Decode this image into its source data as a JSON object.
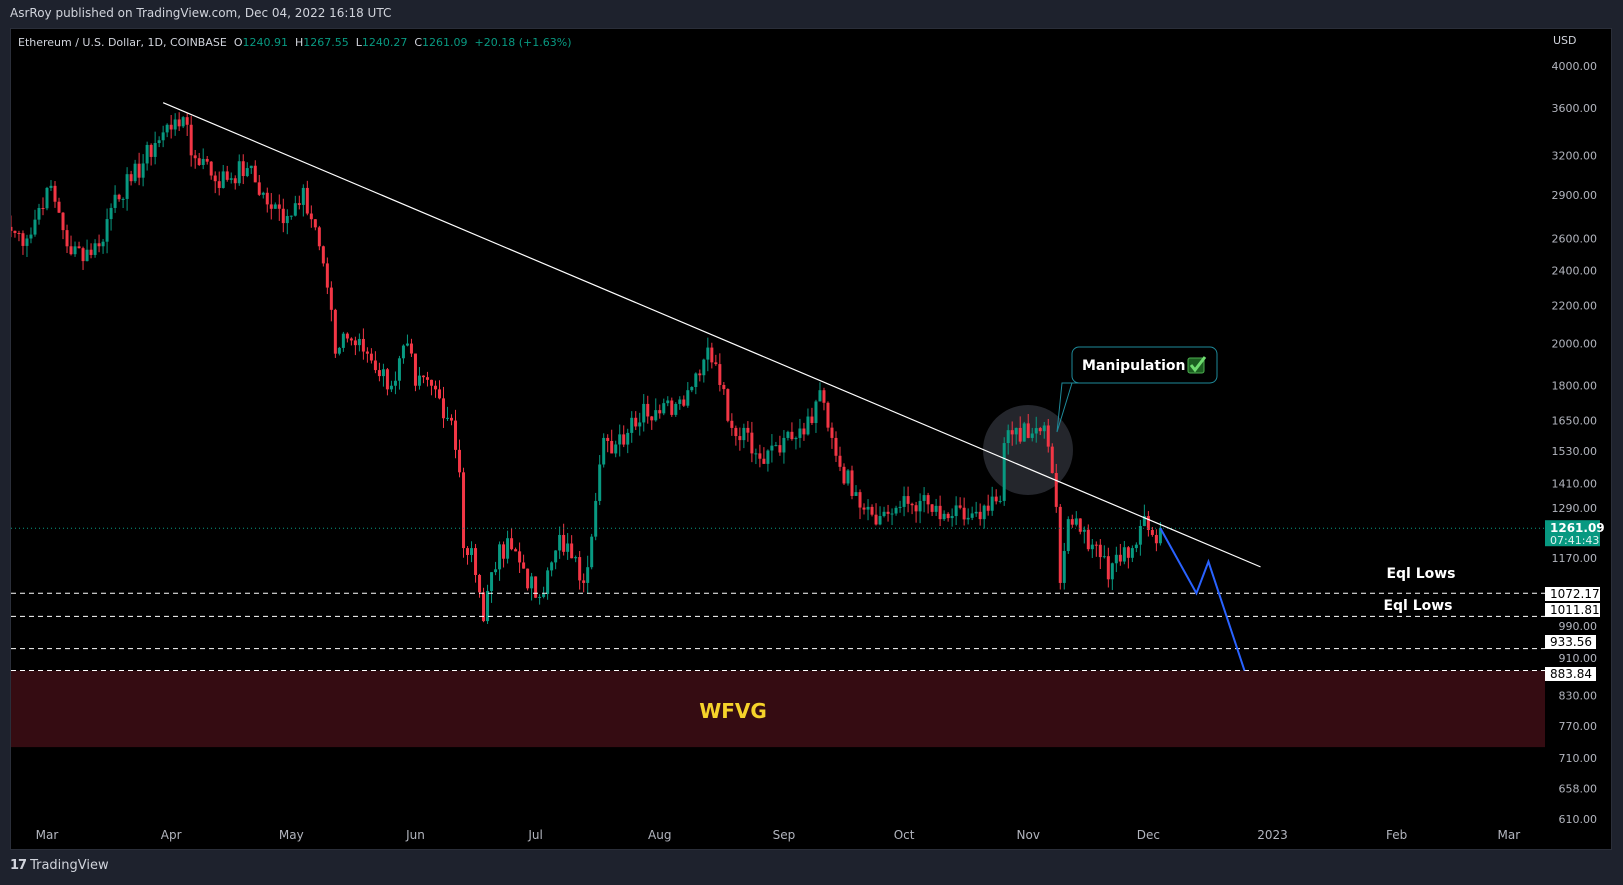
{
  "header": {
    "published": "AsrRoy published on TradingView.com, Dec 04, 2022 16:18 UTC"
  },
  "legend": {
    "symbol": "Ethereum / U.S. Dollar, 1D, COINBASE",
    "o_label": "O",
    "o": "1240.91",
    "h_label": "H",
    "h": "1267.55",
    "l_label": "L",
    "l": "1240.27",
    "c_label": "C",
    "c": "1261.09",
    "change": "+20.18 (+1.63%)"
  },
  "footer": {
    "brand": "TradingView",
    "logo": "TV"
  },
  "colors": {
    "up": "#089981",
    "down": "#f23645",
    "bg": "#000000",
    "trendline": "#ffffff",
    "projection": "#2962ff",
    "zone": "#350c12",
    "wfvg_text": "#f5d32a",
    "label_border": "#1e8a9a"
  },
  "chart_data": {
    "type": "candlestick",
    "currency_label": "USD",
    "scale": "log",
    "ylim": [
      600,
      4300
    ],
    "y_ticks": [
      "4000.00",
      "3600.00",
      "3200.00",
      "2900.00",
      "2600.00",
      "2400.00",
      "2200.00",
      "2000.00",
      "1800.00",
      "1650.00",
      "1530.00",
      "1410.00",
      "1290.00",
      "1170.00",
      "990.00",
      "910.00",
      "830.00",
      "770.00",
      "710.00",
      "658.00",
      "610.00"
    ],
    "x_ticks": [
      {
        "label": "Mar",
        "date": "2022-03-01"
      },
      {
        "label": "Apr",
        "date": "2022-04-01"
      },
      {
        "label": "May",
        "date": "2022-05-01"
      },
      {
        "label": "Jun",
        "date": "2022-06-01"
      },
      {
        "label": "Jul",
        "date": "2022-07-01"
      },
      {
        "label": "Aug",
        "date": "2022-08-01"
      },
      {
        "label": "Sep",
        "date": "2022-09-01"
      },
      {
        "label": "Oct",
        "date": "2022-10-01"
      },
      {
        "label": "Nov",
        "date": "2022-11-01"
      },
      {
        "label": "Dec",
        "date": "2022-12-01"
      },
      {
        "label": "2023",
        "date": "2023-01-01"
      },
      {
        "label": "Feb",
        "date": "2023-02-01"
      },
      {
        "label": "Mar",
        "date": "2023-03-01"
      }
    ],
    "close_keypoints": [
      [
        "2022-02-20",
        2650
      ],
      [
        "2022-02-24",
        2600
      ],
      [
        "2022-03-01",
        2950
      ],
      [
        "2022-03-03",
        2850
      ],
      [
        "2022-03-07",
        2500
      ],
      [
        "2022-03-14",
        2550
      ],
      [
        "2022-03-18",
        2900
      ],
      [
        "2022-03-22",
        3000
      ],
      [
        "2022-03-28",
        3300
      ],
      [
        "2022-04-02",
        3500
      ],
      [
        "2022-04-04",
        3520
      ],
      [
        "2022-04-06",
        3200
      ],
      [
        "2022-04-10",
        3150
      ],
      [
        "2022-04-12",
        3000
      ],
      [
        "2022-04-20",
        3100
      ],
      [
        "2022-04-26",
        2800
      ],
      [
        "2022-04-30",
        2750
      ],
      [
        "2022-05-04",
        2950
      ],
      [
        "2022-05-08",
        2550
      ],
      [
        "2022-05-10",
        2300
      ],
      [
        "2022-05-12",
        1950
      ],
      [
        "2022-05-14",
        2050
      ],
      [
        "2022-05-20",
        1950
      ],
      [
        "2022-05-26",
        1800
      ],
      [
        "2022-05-30",
        2000
      ],
      [
        "2022-06-01",
        1800
      ],
      [
        "2022-06-05",
        1800
      ],
      [
        "2022-06-10",
        1650
      ],
      [
        "2022-06-12",
        1450
      ],
      [
        "2022-06-13",
        1200
      ],
      [
        "2022-06-15",
        1200
      ],
      [
        "2022-06-18",
        1000
      ],
      [
        "2022-06-20",
        1130
      ],
      [
        "2022-06-24",
        1230
      ],
      [
        "2022-06-28",
        1140
      ],
      [
        "2022-07-01",
        1060
      ],
      [
        "2022-07-03",
        1070
      ],
      [
        "2022-07-07",
        1240
      ],
      [
        "2022-07-10",
        1170
      ],
      [
        "2022-07-13",
        1100
      ],
      [
        "2022-07-16",
        1350
      ],
      [
        "2022-07-18",
        1580
      ],
      [
        "2022-07-20",
        1520
      ],
      [
        "2022-07-24",
        1600
      ],
      [
        "2022-07-28",
        1720
      ],
      [
        "2022-08-01",
        1680
      ],
      [
        "2022-08-05",
        1720
      ],
      [
        "2022-08-08",
        1780
      ],
      [
        "2022-08-13",
        1980
      ],
      [
        "2022-08-15",
        1900
      ],
      [
        "2022-08-19",
        1620
      ],
      [
        "2022-08-22",
        1620
      ],
      [
        "2022-08-26",
        1500
      ],
      [
        "2022-08-29",
        1550
      ],
      [
        "2022-09-01",
        1580
      ],
      [
        "2022-09-04",
        1580
      ],
      [
        "2022-09-08",
        1640
      ],
      [
        "2022-09-10",
        1780
      ],
      [
        "2022-09-13",
        1580
      ],
      [
        "2022-09-15",
        1470
      ],
      [
        "2022-09-19",
        1380
      ],
      [
        "2022-09-22",
        1330
      ],
      [
        "2022-09-25",
        1300
      ],
      [
        "2022-09-30",
        1330
      ],
      [
        "2022-10-05",
        1350
      ],
      [
        "2022-10-10",
        1290
      ],
      [
        "2022-10-13",
        1300
      ],
      [
        "2022-10-20",
        1290
      ],
      [
        "2022-10-25",
        1350
      ],
      [
        "2022-10-26",
        1560
      ],
      [
        "2022-10-29",
        1620
      ],
      [
        "2022-11-01",
        1580
      ],
      [
        "2022-11-05",
        1630
      ],
      [
        "2022-11-08",
        1330
      ],
      [
        "2022-11-09",
        1100
      ],
      [
        "2022-11-11",
        1290
      ],
      [
        "2022-11-14",
        1250
      ],
      [
        "2022-11-18",
        1210
      ],
      [
        "2022-11-21",
        1110
      ],
      [
        "2022-11-23",
        1180
      ],
      [
        "2022-11-27",
        1200
      ],
      [
        "2022-11-30",
        1300
      ],
      [
        "2022-12-02",
        1240
      ],
      [
        "2022-12-04",
        1261.09
      ]
    ],
    "last_price": {
      "value": 1261.09,
      "label": "1261.09",
      "countdown": "07:41:43"
    },
    "levels": [
      {
        "value": 1072.17,
        "label": "1072.17",
        "annotation": "Eql Lows"
      },
      {
        "value": 1011.81,
        "label": "1011.81",
        "annotation": "Eql Lows"
      },
      {
        "value": 933.56,
        "label": "933.56",
        "annotation": ""
      },
      {
        "value": 883.84,
        "label": "883.84",
        "annotation": ""
      }
    ],
    "zone": {
      "label": "WFVG",
      "top": 883.84,
      "bottom": 730
    },
    "trendline": [
      [
        "2022-03-30",
        3650
      ],
      [
        "2022-12-29",
        1145
      ]
    ],
    "projection": [
      [
        "2022-12-04",
        1261
      ],
      [
        "2022-12-13",
        1072
      ],
      [
        "2022-12-16",
        1160
      ],
      [
        "2022-12-25",
        883.84
      ]
    ],
    "callout": {
      "text": "Manipulation",
      "date": "2022-11-07",
      "price": 1640,
      "highlight_center": [
        "2022-10-31",
        1520
      ]
    }
  }
}
